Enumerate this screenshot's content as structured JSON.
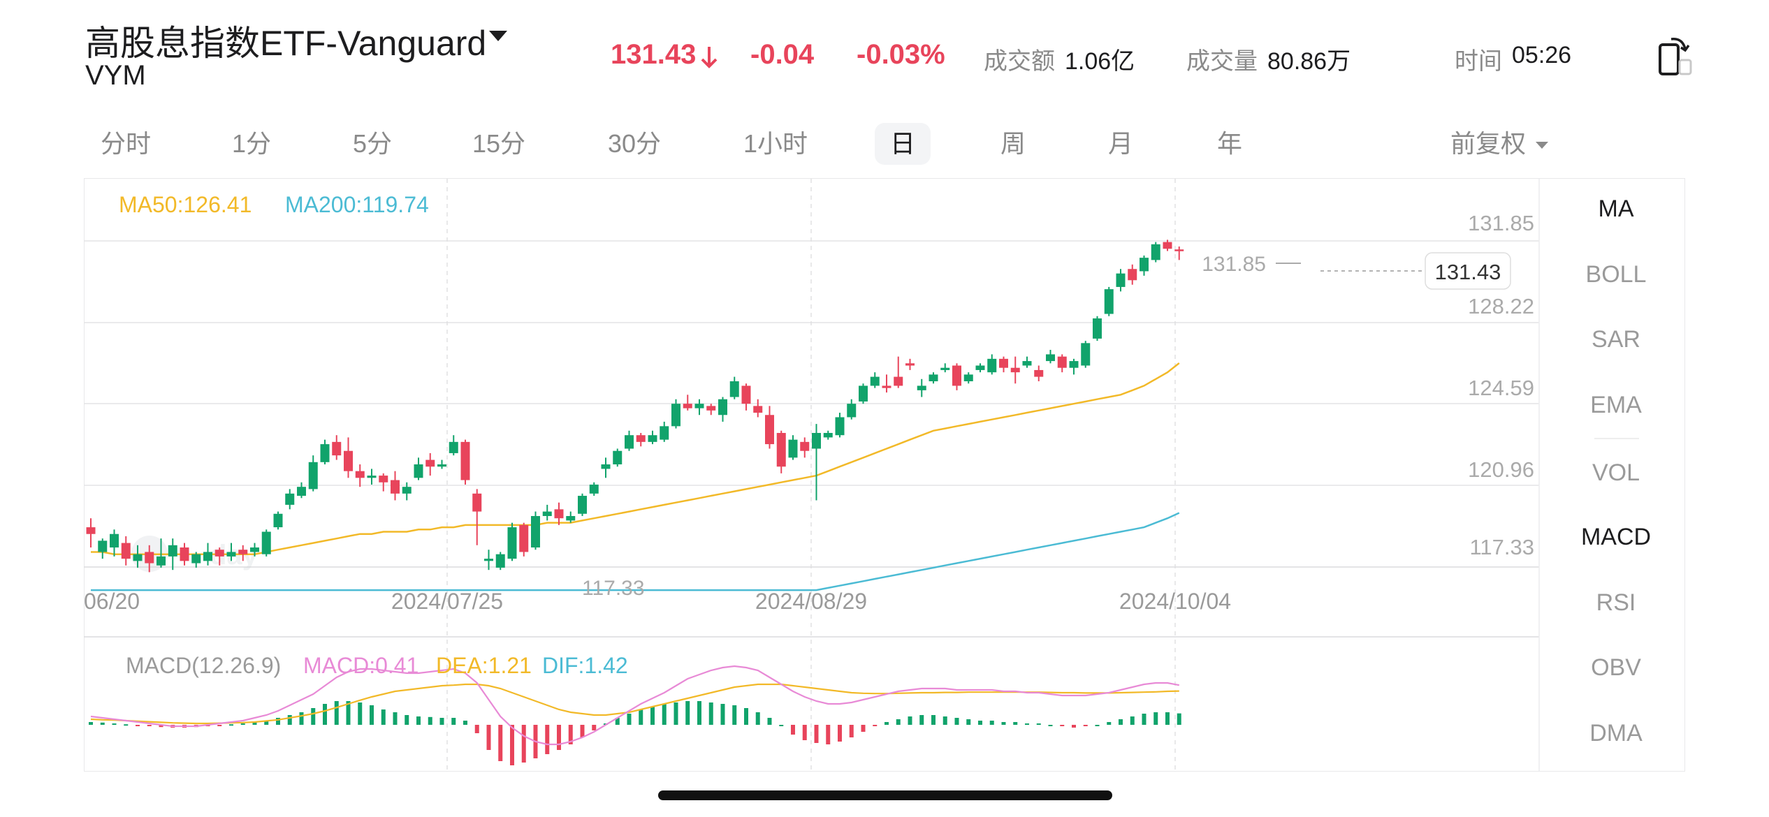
{
  "header": {
    "title": "高股息指数ETF-Vanguard",
    "ticker": "VYM",
    "price": "131.43",
    "change": "-0.04",
    "change_pct": "-0.03%",
    "turnover_label": "成交额",
    "turnover_value": "1.06亿",
    "volume_label": "成交量",
    "volume_value": "80.86万",
    "time_label": "时间",
    "time_value": "05:26",
    "down_color": "#e8445b",
    "up_color": "#11a36b"
  },
  "tabs": [
    {
      "label": "分时"
    },
    {
      "label": "1分"
    },
    {
      "label": "5分"
    },
    {
      "label": "15分"
    },
    {
      "label": "30分"
    },
    {
      "label": "1小时"
    },
    {
      "label": "日",
      "active": true
    },
    {
      "label": "周"
    },
    {
      "label": "月"
    },
    {
      "label": "年"
    }
  ],
  "adjust": {
    "label": "前复权"
  },
  "indicators": [
    {
      "label": "MA",
      "active": true
    },
    {
      "label": "BOLL"
    },
    {
      "label": "SAR"
    },
    {
      "label": "EMA"
    },
    {
      "label": "VOL"
    },
    {
      "label": "MACD",
      "active": true
    },
    {
      "label": "RSI"
    },
    {
      "label": "OBV"
    },
    {
      "label": "DMA"
    }
  ],
  "main_chart": {
    "ma50_label": "MA50:126.41",
    "ma200_label": "MA200:119.74",
    "ma50_color": "#f2b928",
    "ma200_color": "#4bbbd4",
    "price_ticks": [
      "131.85",
      "128.22",
      "124.59",
      "120.96",
      "117.33"
    ],
    "date_labels": [
      "06/20",
      "2024/07/25",
      "2024/08/29",
      "2024/10/04"
    ],
    "high_marker": "131.85",
    "low_marker": "117.33",
    "last_price_tag": "131.43"
  },
  "macd_chart": {
    "title": "MACD(12.26.9)",
    "macd_label": "MACD:0.41",
    "dea_label": "DEA:1.21",
    "dif_label": "DIF:1.42",
    "macd_color": "#e88ad6",
    "dea_color": "#f2b928",
    "dif_color": "#4bbbd4"
  },
  "chart_data": {
    "type": "candlestick",
    "ylim": [
      116.0,
      133.0
    ],
    "candles": [
      {
        "o": 119.1,
        "h": 119.5,
        "l": 118.2,
        "c": 118.8
      },
      {
        "o": 118.0,
        "h": 118.6,
        "l": 117.7,
        "c": 118.5
      },
      {
        "o": 118.2,
        "h": 119.0,
        "l": 117.8,
        "c": 118.8
      },
      {
        "o": 118.4,
        "h": 118.7,
        "l": 117.4,
        "c": 117.7
      },
      {
        "o": 117.6,
        "h": 118.3,
        "l": 117.3,
        "c": 117.9
      },
      {
        "o": 118.0,
        "h": 118.3,
        "l": 117.1,
        "c": 117.5
      },
      {
        "o": 117.4,
        "h": 118.6,
        "l": 117.3,
        "c": 117.8
      },
      {
        "o": 117.8,
        "h": 118.6,
        "l": 117.2,
        "c": 118.3
      },
      {
        "o": 118.2,
        "h": 118.4,
        "l": 117.4,
        "c": 117.6
      },
      {
        "o": 117.5,
        "h": 118.0,
        "l": 117.3,
        "c": 117.9
      },
      {
        "o": 117.6,
        "h": 118.4,
        "l": 117.4,
        "c": 118.0
      },
      {
        "o": 118.1,
        "h": 118.2,
        "l": 117.4,
        "c": 117.8
      },
      {
        "o": 117.8,
        "h": 118.4,
        "l": 117.6,
        "c": 118.0
      },
      {
        "o": 118.1,
        "h": 118.3,
        "l": 117.6,
        "c": 117.9
      },
      {
        "o": 118.0,
        "h": 118.4,
        "l": 117.8,
        "c": 118.2
      },
      {
        "o": 117.9,
        "h": 119.0,
        "l": 117.8,
        "c": 118.9
      },
      {
        "o": 119.1,
        "h": 119.8,
        "l": 119.0,
        "c": 119.7
      },
      {
        "o": 120.1,
        "h": 120.8,
        "l": 119.9,
        "c": 120.6
      },
      {
        "o": 120.5,
        "h": 121.1,
        "l": 120.4,
        "c": 120.9
      },
      {
        "o": 120.8,
        "h": 122.3,
        "l": 120.7,
        "c": 122.0
      },
      {
        "o": 122.0,
        "h": 123.0,
        "l": 121.9,
        "c": 122.8
      },
      {
        "o": 122.9,
        "h": 123.2,
        "l": 122.1,
        "c": 122.3
      },
      {
        "o": 122.5,
        "h": 123.1,
        "l": 121.3,
        "c": 121.6
      },
      {
        "o": 121.6,
        "h": 121.9,
        "l": 120.9,
        "c": 121.3
      },
      {
        "o": 121.3,
        "h": 121.7,
        "l": 121.0,
        "c": 121.4
      },
      {
        "o": 121.4,
        "h": 121.5,
        "l": 120.7,
        "c": 121.1
      },
      {
        "o": 121.2,
        "h": 121.6,
        "l": 120.3,
        "c": 120.6
      },
      {
        "o": 120.6,
        "h": 121.1,
        "l": 120.3,
        "c": 120.9
      },
      {
        "o": 121.3,
        "h": 122.2,
        "l": 121.2,
        "c": 121.9
      },
      {
        "o": 122.1,
        "h": 122.4,
        "l": 121.4,
        "c": 121.8
      },
      {
        "o": 121.8,
        "h": 122.1,
        "l": 121.7,
        "c": 121.9
      },
      {
        "o": 122.4,
        "h": 123.2,
        "l": 122.3,
        "c": 122.9
      },
      {
        "o": 122.9,
        "h": 123.0,
        "l": 121.0,
        "c": 121.2
      },
      {
        "o": 120.6,
        "h": 120.8,
        "l": 118.3,
        "c": 119.8
      },
      {
        "o": 117.6,
        "h": 118.1,
        "l": 117.2,
        "c": 117.7
      },
      {
        "o": 117.3,
        "h": 118.0,
        "l": 117.2,
        "c": 117.9
      },
      {
        "o": 117.7,
        "h": 119.3,
        "l": 117.6,
        "c": 119.1
      },
      {
        "o": 119.2,
        "h": 119.3,
        "l": 117.8,
        "c": 118.0
      },
      {
        "o": 118.2,
        "h": 119.8,
        "l": 118.1,
        "c": 119.6
      },
      {
        "o": 119.6,
        "h": 120.1,
        "l": 119.4,
        "c": 119.8
      },
      {
        "o": 119.9,
        "h": 120.2,
        "l": 119.2,
        "c": 119.5
      },
      {
        "o": 119.4,
        "h": 119.8,
        "l": 119.3,
        "c": 119.6
      },
      {
        "o": 119.7,
        "h": 120.6,
        "l": 119.6,
        "c": 120.5
      },
      {
        "o": 120.6,
        "h": 121.1,
        "l": 120.5,
        "c": 121.0
      },
      {
        "o": 121.7,
        "h": 122.2,
        "l": 121.3,
        "c": 121.9
      },
      {
        "o": 121.9,
        "h": 122.6,
        "l": 121.8,
        "c": 122.5
      },
      {
        "o": 122.6,
        "h": 123.4,
        "l": 122.5,
        "c": 123.2
      },
      {
        "o": 123.2,
        "h": 123.3,
        "l": 122.7,
        "c": 122.9
      },
      {
        "o": 122.9,
        "h": 123.4,
        "l": 122.8,
        "c": 123.2
      },
      {
        "o": 123.0,
        "h": 123.8,
        "l": 122.9,
        "c": 123.6
      },
      {
        "o": 123.6,
        "h": 124.8,
        "l": 123.5,
        "c": 124.6
      },
      {
        "o": 124.6,
        "h": 125.0,
        "l": 124.3,
        "c": 124.4
      },
      {
        "o": 124.4,
        "h": 124.8,
        "l": 124.1,
        "c": 124.6
      },
      {
        "o": 124.5,
        "h": 124.6,
        "l": 124.1,
        "c": 124.3
      },
      {
        "o": 124.1,
        "h": 124.9,
        "l": 123.8,
        "c": 124.8
      },
      {
        "o": 124.9,
        "h": 125.8,
        "l": 124.8,
        "c": 125.6
      },
      {
        "o": 125.4,
        "h": 125.5,
        "l": 124.3,
        "c": 124.6
      },
      {
        "o": 124.5,
        "h": 124.8,
        "l": 124.0,
        "c": 124.2
      },
      {
        "o": 124.1,
        "h": 124.5,
        "l": 122.6,
        "c": 122.8
      },
      {
        "o": 123.3,
        "h": 123.4,
        "l": 121.5,
        "c": 121.8
      },
      {
        "o": 122.2,
        "h": 123.2,
        "l": 122.1,
        "c": 123.0
      },
      {
        "o": 122.9,
        "h": 123.1,
        "l": 122.2,
        "c": 122.5
      },
      {
        "o": 122.6,
        "h": 123.7,
        "l": 120.3,
        "c": 123.3
      },
      {
        "o": 123.1,
        "h": 123.4,
        "l": 123.0,
        "c": 123.3
      },
      {
        "o": 123.2,
        "h": 124.2,
        "l": 123.1,
        "c": 124.0
      },
      {
        "o": 124.0,
        "h": 124.8,
        "l": 123.9,
        "c": 124.6
      },
      {
        "o": 124.7,
        "h": 125.5,
        "l": 124.6,
        "c": 125.4
      },
      {
        "o": 125.4,
        "h": 126.0,
        "l": 125.3,
        "c": 125.8
      },
      {
        "o": 125.4,
        "h": 125.9,
        "l": 125.1,
        "c": 125.3
      },
      {
        "o": 125.8,
        "h": 126.7,
        "l": 125.3,
        "c": 125.4
      },
      {
        "o": 126.4,
        "h": 126.6,
        "l": 126.1,
        "c": 126.3
      },
      {
        "o": 125.2,
        "h": 125.7,
        "l": 124.9,
        "c": 125.4
      },
      {
        "o": 125.6,
        "h": 126.0,
        "l": 125.5,
        "c": 125.9
      },
      {
        "o": 126.1,
        "h": 126.4,
        "l": 126.0,
        "c": 126.2
      },
      {
        "o": 126.3,
        "h": 126.4,
        "l": 125.2,
        "c": 125.4
      },
      {
        "o": 125.6,
        "h": 126.0,
        "l": 125.5,
        "c": 125.9
      },
      {
        "o": 126.1,
        "h": 126.4,
        "l": 126.0,
        "c": 126.3
      },
      {
        "o": 126.0,
        "h": 126.8,
        "l": 125.9,
        "c": 126.6
      },
      {
        "o": 126.6,
        "h": 126.7,
        "l": 126.0,
        "c": 126.2
      },
      {
        "o": 126.2,
        "h": 126.7,
        "l": 125.5,
        "c": 126.0
      },
      {
        "o": 126.3,
        "h": 126.7,
        "l": 126.2,
        "c": 126.5
      },
      {
        "o": 126.1,
        "h": 126.3,
        "l": 125.6,
        "c": 125.8
      },
      {
        "o": 126.5,
        "h": 127.0,
        "l": 126.4,
        "c": 126.8
      },
      {
        "o": 126.7,
        "h": 126.8,
        "l": 126.0,
        "c": 126.2
      },
      {
        "o": 126.2,
        "h": 126.6,
        "l": 125.9,
        "c": 126.5
      },
      {
        "o": 126.3,
        "h": 127.4,
        "l": 126.2,
        "c": 127.3
      },
      {
        "o": 127.5,
        "h": 128.5,
        "l": 127.4,
        "c": 128.4
      },
      {
        "o": 128.6,
        "h": 129.8,
        "l": 128.5,
        "c": 129.7
      },
      {
        "o": 129.8,
        "h": 130.6,
        "l": 129.6,
        "c": 130.4
      },
      {
        "o": 130.6,
        "h": 130.8,
        "l": 129.9,
        "c": 130.1
      },
      {
        "o": 130.5,
        "h": 131.2,
        "l": 130.3,
        "c": 131.1
      },
      {
        "o": 131.0,
        "h": 131.8,
        "l": 130.9,
        "c": 131.7
      },
      {
        "o": 131.8,
        "h": 131.9,
        "l": 131.4,
        "c": 131.5
      },
      {
        "o": 131.47,
        "h": 131.6,
        "l": 131.0,
        "c": 131.43
      }
    ],
    "ma50": [
      118.0,
      118.0,
      117.9,
      117.9,
      117.9,
      117.9,
      117.9,
      117.9,
      117.9,
      117.9,
      117.9,
      117.9,
      117.9,
      117.9,
      117.9,
      118.0,
      118.1,
      118.2,
      118.3,
      118.4,
      118.5,
      118.6,
      118.7,
      118.8,
      118.8,
      118.9,
      118.9,
      118.9,
      119.0,
      119.0,
      119.1,
      119.1,
      119.2,
      119.2,
      119.2,
      119.2,
      119.2,
      119.2,
      119.2,
      119.3,
      119.3,
      119.3,
      119.4,
      119.5,
      119.6,
      119.7,
      119.8,
      119.9,
      120.0,
      120.1,
      120.2,
      120.3,
      120.4,
      120.5,
      120.6,
      120.7,
      120.8,
      120.9,
      121.0,
      121.1,
      121.2,
      121.3,
      121.4,
      121.6,
      121.8,
      122.0,
      122.2,
      122.4,
      122.6,
      122.8,
      123.0,
      123.2,
      123.4,
      123.5,
      123.6,
      123.7,
      123.8,
      123.9,
      124.0,
      124.1,
      124.2,
      124.3,
      124.4,
      124.5,
      124.6,
      124.7,
      124.8,
      124.9,
      125.0,
      125.2,
      125.4,
      125.7,
      126.0,
      126.41
    ],
    "ma200": [
      116.3,
      116.3,
      116.3,
      116.3,
      116.3,
      116.3,
      116.3,
      116.3,
      116.3,
      116.3,
      116.3,
      116.3,
      116.3,
      116.3,
      116.3,
      116.3,
      116.3,
      116.3,
      116.3,
      116.3,
      116.3,
      116.3,
      116.3,
      116.3,
      116.3,
      116.3,
      116.3,
      116.3,
      116.3,
      116.3,
      116.3,
      116.3,
      116.3,
      116.3,
      116.3,
      116.3,
      116.3,
      116.3,
      116.3,
      116.3,
      116.3,
      116.3,
      116.3,
      116.3,
      116.3,
      116.3,
      116.3,
      116.3,
      116.3,
      116.3,
      116.3,
      116.3,
      116.3,
      116.3,
      116.3,
      116.3,
      116.3,
      116.3,
      116.3,
      116.3,
      116.3,
      116.3,
      116.3,
      116.4,
      116.5,
      116.6,
      116.7,
      116.8,
      116.9,
      117.0,
      117.1,
      117.2,
      117.3,
      117.4,
      117.5,
      117.6,
      117.7,
      117.8,
      117.9,
      118.0,
      118.1,
      118.2,
      118.3,
      118.4,
      118.5,
      118.6,
      118.7,
      118.8,
      118.9,
      119.0,
      119.1,
      119.3,
      119.5,
      119.74
    ],
    "macd_hist": [
      0.1,
      0.08,
      0.05,
      0.02,
      -0.02,
      -0.05,
      -0.08,
      -0.1,
      -0.1,
      -0.08,
      -0.05,
      -0.02,
      0.02,
      0.05,
      0.1,
      0.15,
      0.25,
      0.35,
      0.45,
      0.6,
      0.75,
      0.85,
      0.85,
      0.8,
      0.7,
      0.55,
      0.45,
      0.35,
      0.3,
      0.28,
      0.25,
      0.25,
      0.15,
      -0.3,
      -0.9,
      -1.3,
      -1.45,
      -1.35,
      -1.2,
      -1.05,
      -0.9,
      -0.7,
      -0.45,
      -0.2,
      0.05,
      0.25,
      0.4,
      0.55,
      0.65,
      0.75,
      0.8,
      0.85,
      0.85,
      0.8,
      0.75,
      0.7,
      0.6,
      0.45,
      0.25,
      0.0,
      -0.35,
      -0.55,
      -0.65,
      -0.7,
      -0.6,
      -0.45,
      -0.25,
      -0.05,
      0.1,
      0.2,
      0.3,
      0.35,
      0.35,
      0.3,
      0.25,
      0.2,
      0.15,
      0.15,
      0.1,
      0.1,
      0.05,
      0.05,
      0.0,
      -0.05,
      -0.1,
      -0.05,
      0.0,
      0.1,
      0.2,
      0.3,
      0.4,
      0.45,
      0.45,
      0.41
    ],
    "dif": [
      0.3,
      0.25,
      0.2,
      0.15,
      0.1,
      0.05,
      0.0,
      -0.05,
      -0.05,
      -0.05,
      0.0,
      0.05,
      0.1,
      0.15,
      0.25,
      0.35,
      0.5,
      0.7,
      0.9,
      1.1,
      1.4,
      1.7,
      1.9,
      2.0,
      2.0,
      1.95,
      1.9,
      1.85,
      1.85,
      1.9,
      1.95,
      2.0,
      1.85,
      1.5,
      0.9,
      0.3,
      -0.1,
      -0.4,
      -0.6,
      -0.7,
      -0.7,
      -0.6,
      -0.45,
      -0.25,
      0.0,
      0.25,
      0.5,
      0.75,
      0.95,
      1.15,
      1.4,
      1.65,
      1.8,
      1.95,
      2.05,
      2.1,
      2.05,
      1.95,
      1.7,
      1.45,
      1.2,
      1.0,
      0.85,
      0.75,
      0.75,
      0.8,
      0.9,
      1.0,
      1.1,
      1.2,
      1.25,
      1.3,
      1.3,
      1.3,
      1.25,
      1.25,
      1.25,
      1.25,
      1.2,
      1.2,
      1.15,
      1.15,
      1.1,
      1.05,
      1.05,
      1.05,
      1.1,
      1.15,
      1.25,
      1.35,
      1.45,
      1.5,
      1.5,
      1.42
    ],
    "dea": [
      0.2,
      0.18,
      0.17,
      0.15,
      0.13,
      0.11,
      0.09,
      0.07,
      0.06,
      0.05,
      0.05,
      0.06,
      0.07,
      0.08,
      0.1,
      0.14,
      0.18,
      0.25,
      0.32,
      0.4,
      0.5,
      0.62,
      0.75,
      0.88,
      1.0,
      1.1,
      1.2,
      1.25,
      1.3,
      1.35,
      1.4,
      1.42,
      1.45,
      1.45,
      1.4,
      1.3,
      1.15,
      1.0,
      0.85,
      0.7,
      0.55,
      0.45,
      0.4,
      0.35,
      0.35,
      0.4,
      0.45,
      0.55,
      0.65,
      0.75,
      0.85,
      0.95,
      1.05,
      1.15,
      1.25,
      1.35,
      1.4,
      1.45,
      1.45,
      1.45,
      1.4,
      1.35,
      1.3,
      1.25,
      1.2,
      1.15,
      1.13,
      1.12,
      1.12,
      1.13,
      1.14,
      1.15,
      1.15,
      1.16,
      1.16,
      1.17,
      1.17,
      1.17,
      1.17,
      1.17,
      1.17,
      1.17,
      1.16,
      1.15,
      1.15,
      1.14,
      1.14,
      1.14,
      1.15,
      1.16,
      1.17,
      1.18,
      1.2,
      1.21
    ]
  }
}
